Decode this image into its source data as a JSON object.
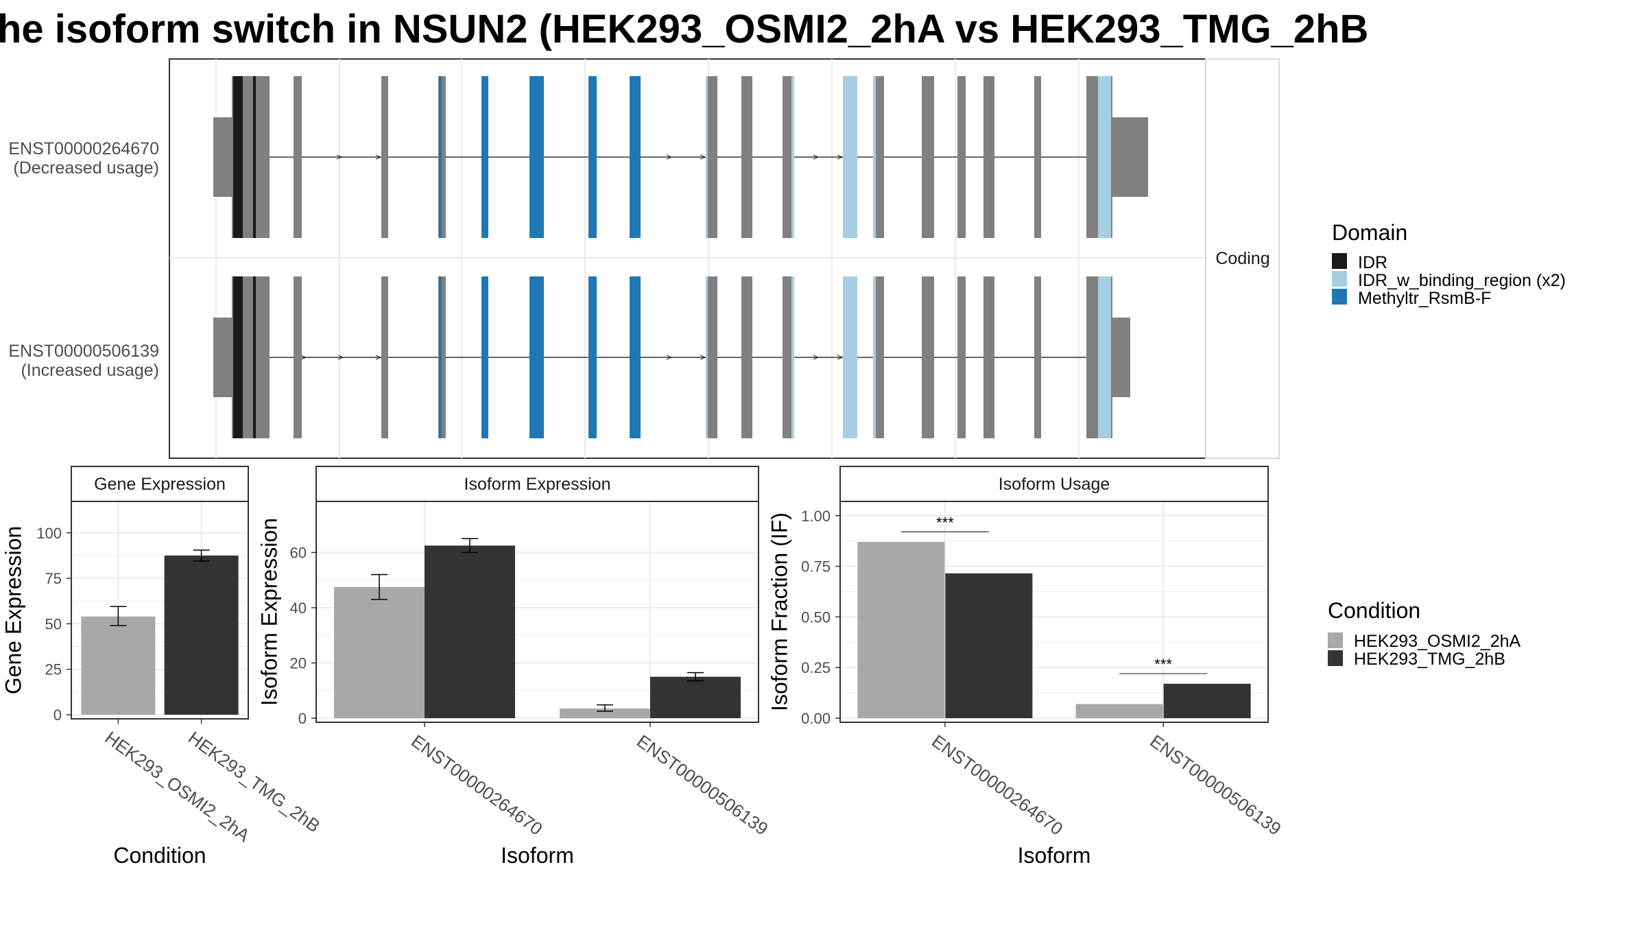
{
  "title": "he isoform switch in NSUN2 (HEK293_OSMI2_2hA vs HEK293_TMG_2hB",
  "facet_label": "Coding",
  "colors": {
    "exon": "#808080",
    "idr": "#1a1a1a",
    "idr_binding": "#a6cee3",
    "methyltr": "#1f78b4",
    "cond_a": "#a8a8a8",
    "cond_b": "#333333",
    "panel_border": "#333333",
    "strip_bg": "#ffffff",
    "grid": "#ebebeb"
  },
  "legend_domain": {
    "title": "Domain",
    "items": [
      {
        "label": "IDR",
        "color": "#1a1a1a"
      },
      {
        "label": "IDR_w_binding_region (x2)",
        "color": "#a6cee3"
      },
      {
        "label": "Methyltr_RsmB-F",
        "color": "#1f78b4"
      }
    ]
  },
  "legend_condition": {
    "title": "Condition",
    "items": [
      {
        "label": "HEK293_OSMI2_2hA",
        "color": "#a8a8a8"
      },
      {
        "label": "HEK293_TMG_2hB",
        "color": "#333333"
      }
    ]
  },
  "transcripts": [
    {
      "id": "ENST00000264670",
      "note": "(Decreased usage)"
    },
    {
      "id": "ENST00000506139",
      "note": "(Increased usage)"
    }
  ],
  "chart_data": [
    {
      "type": "bar",
      "strip": "Gene Expression",
      "xlabel": "Condition",
      "ylabel": "Gene Expression",
      "categories": [
        "HEK293_OSMI2_2hA",
        "HEK293_TMG_2hB"
      ],
      "values": [
        54,
        87.5
      ],
      "err_low": [
        49,
        84.5
      ],
      "err_high": [
        59.5,
        90.5
      ],
      "ylim": [
        0,
        115
      ],
      "yticks": [
        0,
        25,
        50,
        75,
        100
      ]
    },
    {
      "type": "bar",
      "strip": "Isoform Expression",
      "xlabel": "Isoform",
      "ylabel": "Isoform Expression",
      "categories": [
        "ENST00000264670",
        "ENST00000506139"
      ],
      "series": [
        {
          "name": "HEK293_OSMI2_2hA",
          "values": [
            47.5,
            3.5
          ],
          "err_low": [
            43,
            2.5
          ],
          "err_high": [
            52,
            4.8
          ]
        },
        {
          "name": "HEK293_TMG_2hB",
          "values": [
            62.5,
            15
          ],
          "err_low": [
            60,
            13.5
          ],
          "err_high": [
            65,
            16.5
          ]
        }
      ],
      "ylim": [
        0,
        77
      ],
      "yticks": [
        0,
        20,
        40,
        60
      ]
    },
    {
      "type": "bar",
      "strip": "Isoform Usage",
      "xlabel": "Isoform",
      "ylabel": "Isoform Fraction (IF)",
      "categories": [
        "ENST00000264670",
        "ENST00000506139"
      ],
      "series": [
        {
          "name": "HEK293_OSMI2_2hA",
          "values": [
            0.87,
            0.07
          ]
        },
        {
          "name": "HEK293_TMG_2hB",
          "values": [
            0.715,
            0.17
          ]
        }
      ],
      "significance": [
        "***",
        "***"
      ],
      "ylim": [
        0,
        1.05
      ],
      "yticks": [
        "0.00",
        "0.25",
        "0.50",
        "0.75",
        "1.00"
      ]
    }
  ]
}
